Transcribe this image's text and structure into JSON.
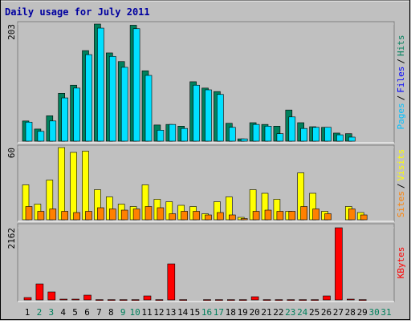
{
  "chart_data": {
    "type": "bar",
    "title": "Daily usage for July 2011",
    "categories": [
      "1",
      "2",
      "3",
      "4",
      "5",
      "6",
      "7",
      "8",
      "9",
      "10",
      "11",
      "12",
      "13",
      "14",
      "15",
      "16",
      "17",
      "18",
      "19",
      "20",
      "21",
      "22",
      "23",
      "24",
      "25",
      "26",
      "27",
      "28",
      "29",
      "30",
      "31"
    ],
    "category_colors": [
      "#000000",
      "#00805c",
      "#00805c",
      "#000000",
      "#000000",
      "#000000",
      "#000000",
      "#000000",
      "#00805c",
      "#00805c",
      "#000000",
      "#000000",
      "#000000",
      "#000000",
      "#000000",
      "#00805c",
      "#00805c",
      "#000000",
      "#000000",
      "#000000",
      "#000000",
      "#000000",
      "#00805c",
      "#00805c",
      "#000000",
      "#000000",
      "#000000",
      "#000000",
      "#000000",
      "#00805c",
      "#00805c"
    ],
    "panels": [
      {
        "ylim": [
          0,
          203
        ],
        "yticks": [
          203
        ],
        "legend": [
          "Pages",
          "/",
          "Files",
          "/",
          "Hits"
        ],
        "legend_colors": [
          "#00c0ff",
          "#000000",
          "#0000ff",
          "#000000",
          "#00805c"
        ],
        "series": [
          {
            "name": "Hits",
            "color": "#00805c",
            "values": [
              35,
              21,
              44,
              83,
              97,
              157,
              203,
              153,
              138,
              201,
              122,
              28,
              29,
              26,
              103,
              92,
              86,
              31,
              4,
              32,
              29,
              26,
              54,
              32,
              25,
              24,
              14,
              13,
              0,
              0,
              0
            ]
          },
          {
            "name": "Files",
            "color": "#00e0ff",
            "values": [
              33,
              17,
              35,
              75,
              92,
              150,
              196,
              147,
              128,
              195,
              114,
              19,
              29,
              22,
              97,
              89,
              81,
              24,
              4,
              29,
              26,
              13,
              42,
              22,
              24,
              24,
              11,
              7,
              0,
              0,
              0
            ]
          }
        ]
      },
      {
        "ylim": [
          0,
          60
        ],
        "yticks": [
          60
        ],
        "legend": [
          "Sites",
          "/",
          "Visits"
        ],
        "legend_colors": [
          "#ff8000",
          "#000000",
          "#ffff00"
        ],
        "series": [
          {
            "name": "Visits",
            "color": "#ffff00",
            "values": [
              29,
              13,
              33,
              60,
              56,
              57,
              25,
              19,
              13,
              11,
              29,
              17,
              15,
              12,
              11,
              5,
              15,
              19,
              2,
              25,
              22,
              17,
              7,
              39,
              22,
              7,
              0,
              11,
              6,
              0,
              0
            ]
          },
          {
            "name": "Sites",
            "color": "#ff8000",
            "values": [
              11,
              7,
              9,
              7,
              6,
              7,
              10,
              9,
              8,
              9,
              11,
              10,
              5,
              7,
              7,
              4,
              6,
              4,
              1,
              7,
              8,
              7,
              7,
              11,
              9,
              5,
              0,
              9,
              4,
              0,
              0
            ]
          }
        ]
      },
      {
        "ylim": [
          0,
          2162
        ],
        "yticks": [
          2162
        ],
        "legend": [
          "KBytes"
        ],
        "legend_colors": [
          "#ff0000"
        ],
        "series": [
          {
            "name": "KBytes",
            "color": "#ff0000",
            "values": [
              72,
              480,
              240,
              24,
              24,
              144,
              10,
              10,
              10,
              10,
              120,
              10,
              1080,
              10,
              0,
              10,
              10,
              10,
              10,
              96,
              10,
              10,
              10,
              10,
              10,
              120,
              2162,
              24,
              10,
              0,
              0
            ]
          }
        ]
      }
    ]
  }
}
